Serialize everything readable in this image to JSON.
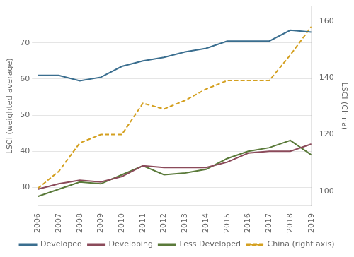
{
  "chart_data": {
    "type": "line",
    "x": [
      2006,
      2007,
      2008,
      2009,
      2010,
      2011,
      2012,
      2013,
      2014,
      2015,
      2016,
      2017,
      2018,
      2019
    ],
    "series": [
      {
        "name": "Developed",
        "color": "#3a6e8f",
        "line_style": "solid",
        "values": [
          61.0,
          61.0,
          59.5,
          60.5,
          63.5,
          65.0,
          66.0,
          67.5,
          68.5,
          70.5,
          70.5,
          70.5,
          73.5,
          73.0
        ]
      },
      {
        "name": "Developing",
        "color": "#8b4a5a",
        "line_style": "solid",
        "values": [
          29.5,
          31.0,
          32.0,
          31.5,
          33.0,
          36.0,
          35.5,
          35.5,
          35.5,
          37.0,
          39.5,
          40.0,
          40.0,
          42.0
        ]
      },
      {
        "name": "Less Developed",
        "color": "#5a7a3a",
        "line_style": "solid",
        "values": [
          27.5,
          29.5,
          31.5,
          31.0,
          33.5,
          36.0,
          33.5,
          34.0,
          35.0,
          38.0,
          40.0,
          41.0,
          43.0,
          39.0
        ]
      },
      {
        "name": "China (right axis)",
        "color": "#d4a020",
        "line_style": "dashed",
        "axis": "y2",
        "values": [
          101,
          107,
          117,
          120,
          120,
          131,
          129,
          132,
          136,
          139,
          139,
          139,
          148,
          158
        ]
      }
    ],
    "ylabel": "LSCI (weighted average)",
    "y2label": "LSCI (China)",
    "xlim": [
      2006,
      2019
    ],
    "xticks": [
      2006,
      2007,
      2008,
      2009,
      2010,
      2011,
      2012,
      2013,
      2014,
      2015,
      2016,
      2017,
      2018,
      2019
    ],
    "ylim": [
      25,
      80
    ],
    "yticks": [
      30,
      40,
      50,
      60,
      70
    ],
    "y2lim": [
      95,
      165
    ],
    "y2ticks": [
      100,
      120,
      140,
      160
    ],
    "grid": "y",
    "legend": "bottom"
  }
}
